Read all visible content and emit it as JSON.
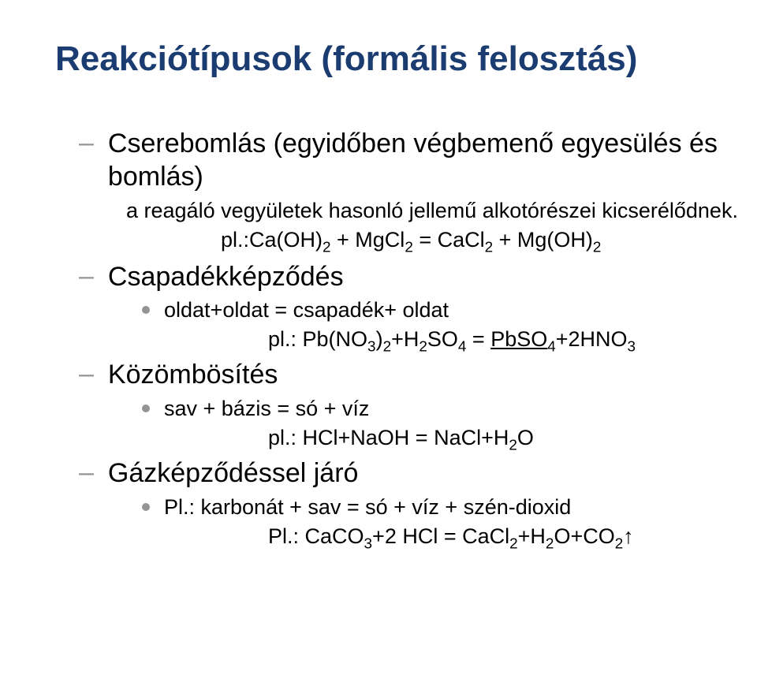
{
  "title": "Reakciótípusok (formális felosztás)",
  "colors": {
    "title": "#1a3c70",
    "bullet": "#949494",
    "text": "#000000",
    "background": "#ffffff"
  },
  "items": {
    "cserebomlas": {
      "label": "Cserebomlás (egyidőben végbemenő egyesülés és bomlás)",
      "desc": "a reagáló vegyületek hasonló jellemű alkotórészei kicserélődnek.",
      "example_prefix": "pl.:Ca(OH)",
      "example_parts": {
        "p1": "pl.:Ca(OH)",
        "s1": "2",
        "p2": " + MgCl",
        "s2": "2",
        "p3": " = CaCl",
        "s3": "2",
        "p4": " + Mg(OH)",
        "s4": "2"
      }
    },
    "csapadek": {
      "label": "Csapadékképződés",
      "sub": "oldat+oldat = csapadék+ oldat",
      "ex": {
        "p1": "pl.: Pb(NO",
        "s1": "3",
        "p2": ")",
        "s2": "2",
        "p3": "+H",
        "s3": "2",
        "p4": "SO",
        "s4": "4",
        "eq": "  =  ",
        "u1": "PbSO",
        "su1": "4",
        "p5": "+2HNO",
        "s5": "3"
      }
    },
    "kozombos": {
      "label": "Közömbösítés",
      "sub": "sav + bázis = só + víz",
      "ex": {
        "p1": "pl.: HCl+NaOH  =  NaCl+H",
        "s1": "2",
        "p2": "O"
      }
    },
    "gaz": {
      "label": "Gázképződéssel járó",
      "sub": "Pl.: karbonát + sav = só + víz + szén-dioxid",
      "ex": {
        "p1": "Pl.: CaCO",
        "s1": "3",
        "p2": "+2 HCl   =   CaCl",
        "s2": "2",
        "p3": "+H",
        "s3": "2",
        "p4": "O+CO",
        "s4": "2",
        "arrow": "↑"
      }
    }
  }
}
